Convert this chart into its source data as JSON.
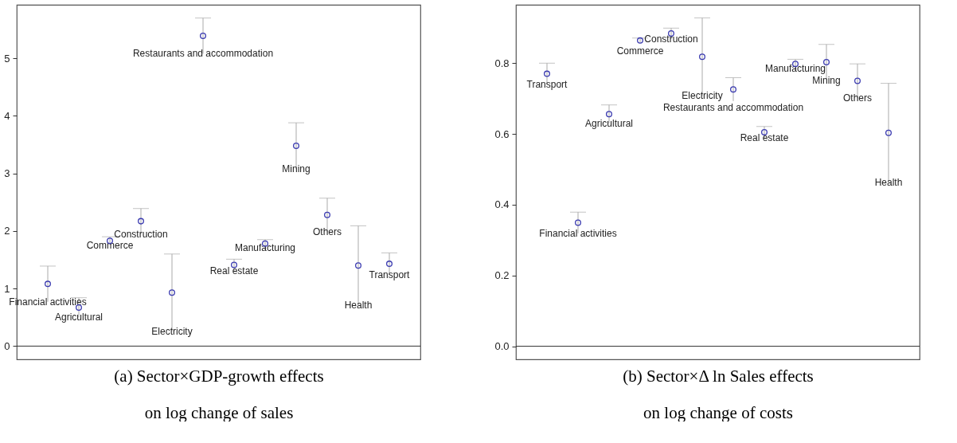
{
  "chart_data": [
    {
      "type": "scatter",
      "xlabel": "(a) Sector×GDP-growth effects\non log change of sales",
      "color": "#3b3bb0",
      "marker": "circle",
      "grid": false,
      "tick_labels": "y",
      "categories": [
        null,
        null,
        null,
        null,
        null,
        null,
        null,
        null,
        null,
        null,
        null,
        null
      ],
      "values": [
        1.08,
        0.67,
        1.83,
        2.17,
        0.93,
        5.39,
        1.41,
        1.78,
        3.48,
        2.28,
        1.4,
        1.43
      ],
      "errors": [
        0.31,
        0.17,
        0.07,
        0.22,
        0.67,
        0.31,
        0.1,
        0.07,
        0.4,
        0.29,
        0.69,
        0.19
      ],
      "annotations": [
        {
          "text": "Financial activities",
          "y": 0.77
        },
        {
          "text": "Agricultural",
          "y": 0.5
        },
        {
          "text": "Commerce",
          "y": 1.76
        },
        {
          "text": "Construction",
          "y": 1.95
        },
        {
          "text": "Electricity",
          "y": 0.26
        },
        {
          "text": "Restaurants and accommodation",
          "y": 5.08
        },
        {
          "text": "Real estate",
          "y": 1.31
        },
        {
          "text": "Manufacturing",
          "y": 1.71
        },
        {
          "text": "Mining",
          "y": 3.08
        },
        {
          "text": "Others",
          "y": 1.99
        },
        {
          "text": "Health",
          "y": 0.71
        },
        {
          "text": "Transport",
          "y": 1.24
        }
      ],
      "ylim": [
        -0.23,
        5.93
      ],
      "yticks": [
        0,
        1,
        2,
        3,
        4,
        5
      ],
      "ref_lines": [
        {
          "axis": "y",
          "value": 0
        }
      ]
    },
    {
      "type": "scatter",
      "xlabel": "(b) Sector×Δ ln Sales effects\non log change of costs",
      "color": "#3b3bb0",
      "marker": "circle",
      "grid": false,
      "tick_labels": "y",
      "categories": [
        null,
        null,
        null,
        null,
        null,
        null,
        null,
        null,
        null,
        null,
        null,
        null
      ],
      "values": [
        0.77,
        0.349,
        0.656,
        0.864,
        0.884,
        0.818,
        0.726,
        0.605,
        0.798,
        0.803,
        0.75,
        0.603
      ],
      "errors": [
        0.03,
        0.03,
        0.026,
        0.007,
        0.015,
        0.11,
        0.033,
        0.016,
        0.013,
        0.05,
        0.048,
        0.14
      ],
      "annotations": [
        {
          "text": "Transport",
          "y": 0.74
        },
        {
          "text": "Financial activities",
          "y": 0.319
        },
        {
          "text": "Agricultural",
          "y": 0.63
        },
        {
          "text": "Commerce",
          "y": 0.857
        },
        {
          "text": "Construction",
          "y": 0.869
        },
        {
          "text": "Electricity",
          "y": 0.708
        },
        {
          "text": "Restaurants and accommodation",
          "y": 0.693
        },
        {
          "text": "Real estate",
          "y": 0.589
        },
        {
          "text": "Manufacturing",
          "y": 0.785
        },
        {
          "text": "Mining",
          "y": 0.753
        },
        {
          "text": "Others",
          "y": 0.702
        },
        {
          "text": "Health",
          "y": 0.463
        }
      ],
      "ylim": [
        -0.037,
        0.965
      ],
      "yticks": [
        {
          "value": 0,
          "label": "0.0"
        },
        0.2,
        0.4,
        0.6,
        0.8
      ],
      "ref_lines": [
        {
          "axis": "y",
          "value": 0
        }
      ]
    }
  ]
}
